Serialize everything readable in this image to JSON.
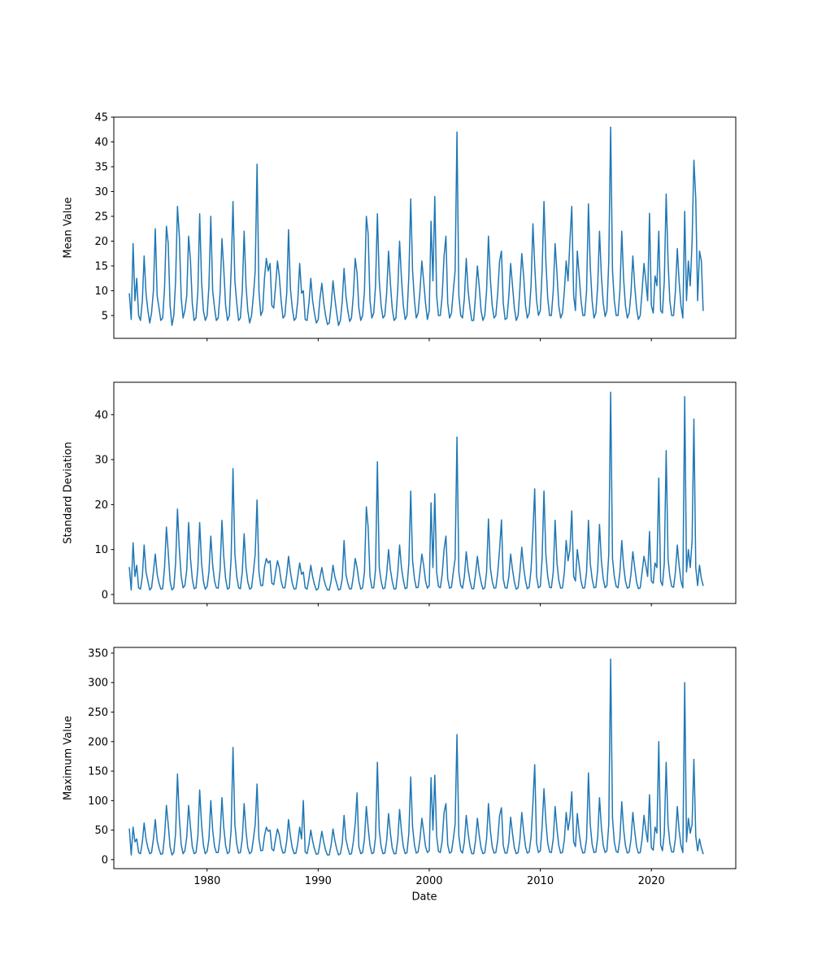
{
  "figure": {
    "background": "#ffffff",
    "text_color": "#000000",
    "spine_color": "#000000"
  },
  "chart_data": [
    {
      "type": "line",
      "title": "",
      "ylabel": "Mean Value",
      "xlabel": "",
      "line_color": "#1f77b4",
      "grid": false,
      "legend": null,
      "xlim": [
        1971.6,
        2027.6
      ],
      "ylim": [
        0.4,
        45.0
      ],
      "xticks": [
        1980,
        1990,
        2000,
        2010,
        2020
      ],
      "xtick_labels": [
        "1980",
        "1990",
        "2000",
        "2010",
        "2020"
      ],
      "show_xtick_labels": false,
      "yticks": [
        5,
        10,
        15,
        20,
        25,
        30,
        35,
        40,
        45
      ],
      "x_start": 1973.0,
      "x_step": 0.1666667,
      "values": [
        9.4,
        4.2,
        19.5,
        8,
        12.5,
        5,
        4,
        8,
        17,
        9.5,
        6,
        3.5,
        5.5,
        10,
        22.5,
        9,
        6.5,
        4,
        4.5,
        10.5,
        23,
        19.5,
        7,
        3,
        5,
        12,
        27,
        21,
        8.5,
        4.5,
        6,
        9,
        21,
        16,
        7.5,
        4,
        4.5,
        10,
        25.5,
        12,
        6,
        4,
        5,
        11,
        25,
        10,
        6.5,
        4,
        4.5,
        9.5,
        20.5,
        14.5,
        7,
        4,
        5,
        14,
        28,
        12,
        7.5,
        4,
        4.5,
        10,
        22,
        11,
        6,
        3.5,
        5,
        9,
        14,
        35.5,
        10,
        5,
        6,
        12.5,
        16.5,
        14,
        15.5,
        7,
        6.5,
        11,
        16,
        13,
        8,
        4.5,
        5,
        9.5,
        22.3,
        10.5,
        6.5,
        4,
        4.5,
        8,
        15.5,
        9.5,
        10,
        4.2,
        4,
        7.5,
        12.5,
        8,
        5.5,
        3.5,
        4.2,
        8.5,
        11.5,
        7.5,
        5,
        3.2,
        3.5,
        7,
        12,
        8.5,
        5.5,
        3,
        4,
        8,
        14.5,
        9,
        6,
        3.8,
        4.5,
        9,
        16.5,
        13.5,
        6.5,
        4,
        5,
        10,
        25,
        21.5,
        8,
        4.5,
        5.5,
        11,
        25.5,
        12,
        7,
        4.5,
        5,
        9.5,
        18,
        11.5,
        6.5,
        4,
        4.5,
        10.5,
        20,
        12.5,
        7,
        4.2,
        5,
        13,
        28.5,
        14,
        8,
        4.5,
        5.5,
        10,
        16,
        12,
        7.5,
        4.2,
        6,
        24,
        12,
        29,
        9,
        5,
        5,
        9,
        17,
        21,
        7.5,
        4.5,
        5.5,
        10,
        14,
        42,
        9,
        5,
        4.5,
        8.5,
        16.5,
        10,
        6.5,
        4,
        4,
        9,
        15,
        11,
        6,
        4,
        5,
        10,
        21,
        12.5,
        7,
        4.5,
        5,
        9.5,
        16,
        18,
        7.5,
        4.2,
        4.5,
        9,
        15.5,
        11,
        6.5,
        4,
        5,
        10.5,
        17.5,
        13,
        7,
        4.5,
        5.5,
        11,
        23.5,
        15,
        8,
        5,
        6,
        14,
        28,
        16,
        8.5,
        5,
        5,
        10,
        19.5,
        13.5,
        7,
        4.5,
        5.5,
        10,
        16,
        12,
        20,
        27,
        9,
        6,
        18,
        13,
        8,
        5,
        5,
        10,
        27.5,
        15,
        8,
        4.5,
        5.5,
        11,
        22,
        13,
        7.5,
        4.8,
        6,
        16,
        43,
        14,
        8,
        5,
        5,
        10,
        22,
        12.5,
        7,
        4.5,
        5.5,
        9.5,
        17,
        11,
        6.5,
        4.2,
        5,
        10,
        15.5,
        12,
        8,
        25.6,
        7,
        5.5,
        13,
        11,
        22,
        6,
        5.5,
        12,
        29.5,
        16,
        8,
        5,
        5,
        10,
        18.5,
        12,
        7,
        4.5,
        26,
        8,
        16,
        11,
        20,
        36.3,
        28.5,
        8,
        18,
        16,
        6
      ]
    },
    {
      "type": "line",
      "title": "",
      "ylabel": "Standard Deviation",
      "xlabel": "",
      "line_color": "#1f77b4",
      "grid": false,
      "legend": null,
      "xlim": [
        1971.6,
        2027.6
      ],
      "ylim": [
        -2.0,
        47.2
      ],
      "xticks": [
        1980,
        1990,
        2000,
        2010,
        2020
      ],
      "xtick_labels": [
        "1980",
        "1990",
        "2000",
        "2010",
        "2020"
      ],
      "show_xtick_labels": false,
      "yticks": [
        0,
        10,
        20,
        30,
        40
      ],
      "x_start": 1973.0,
      "x_step": 0.1666667,
      "values": [
        6,
        1,
        11.5,
        4,
        6.5,
        1.5,
        1.2,
        4,
        11,
        5,
        3,
        1,
        1.5,
        5,
        9,
        4.5,
        2.5,
        1.2,
        1.3,
        6,
        15,
        9.5,
        3,
        1,
        1.5,
        7,
        19,
        10,
        4,
        1.5,
        2,
        5.5,
        16,
        8,
        3.5,
        1.3,
        1.5,
        6,
        16,
        7,
        3,
        1.2,
        1.8,
        5,
        13,
        6.5,
        3,
        1.5,
        1.4,
        5.5,
        16.5,
        8.5,
        3.5,
        1.2,
        1.5,
        8,
        28,
        9,
        4,
        1.5,
        1.3,
        5,
        13.5,
        6,
        2.8,
        1.2,
        1.5,
        5,
        9,
        21,
        5,
        2,
        2,
        6,
        8,
        7,
        7.5,
        2.5,
        2.2,
        5,
        7.5,
        6,
        3,
        1.5,
        1.5,
        4.5,
        8.5,
        5,
        2.5,
        1.2,
        1.3,
        4,
        7,
        4.5,
        5,
        1.5,
        1.2,
        3.5,
        6.5,
        4,
        2.2,
        1,
        1.3,
        3.8,
        6,
        3.5,
        2,
        1,
        1,
        3,
        6.5,
        4,
        2.5,
        1,
        1.2,
        3.5,
        12,
        4.5,
        2.5,
        1.2,
        1.3,
        4,
        8,
        6,
        3,
        1.2,
        1.5,
        5,
        19.5,
        15,
        4,
        1.5,
        1.5,
        5.5,
        29.5,
        6,
        3,
        1.3,
        1.4,
        4.5,
        10,
        5.5,
        3,
        1.2,
        1.3,
        5,
        11,
        6,
        3.2,
        1.3,
        1.5,
        7,
        23,
        7.5,
        3.5,
        1.5,
        1.6,
        5,
        9,
        6.5,
        3,
        1.4,
        2,
        20.4,
        6,
        22.4,
        5,
        1.8,
        1.5,
        4.5,
        10,
        13,
        3.5,
        1.4,
        1.6,
        5,
        8,
        35,
        5,
        2,
        1.4,
        4,
        9.5,
        5.5,
        3,
        1.3,
        1.3,
        4.5,
        8.5,
        5,
        2.8,
        1.2,
        1.5,
        5,
        16.8,
        6,
        3,
        1.4,
        1.5,
        4.8,
        10,
        16.6,
        3.5,
        1.5,
        1.4,
        4,
        9,
        5.5,
        2.8,
        1.2,
        1.5,
        5,
        10.5,
        6,
        3,
        1.3,
        1.6,
        5.5,
        14,
        23.5,
        4,
        1.5,
        1.8,
        8,
        23,
        9,
        4,
        1.6,
        1.5,
        5,
        16.5,
        7,
        3.2,
        1.4,
        1.5,
        5,
        12,
        7.5,
        10,
        18.6,
        4,
        3,
        10,
        6.5,
        3,
        1.4,
        1.5,
        5,
        16.5,
        7,
        3.5,
        1.5,
        1.6,
        5.5,
        15.6,
        7.5,
        3.5,
        1.5,
        2,
        9,
        45,
        8,
        4,
        1.8,
        1.5,
        5,
        12,
        6.5,
        3,
        1.4,
        1.6,
        4.5,
        9.5,
        6,
        2.8,
        1.3,
        1.5,
        5,
        8.5,
        6.5,
        4,
        14,
        3,
        2.5,
        7,
        6,
        25.9,
        3,
        2,
        7,
        32,
        8,
        4,
        1.8,
        1.6,
        5,
        11,
        6.5,
        3,
        1.5,
        44,
        5,
        10,
        6,
        12,
        39,
        6,
        2,
        6.5,
        3.5,
        2
      ]
    },
    {
      "type": "line",
      "title": "",
      "ylabel": "Maximum Value",
      "xlabel": "Date",
      "line_color": "#1f77b4",
      "grid": false,
      "legend": null,
      "xlim": [
        1971.6,
        2027.6
      ],
      "ylim": [
        -15.3,
        359.6
      ],
      "xticks": [
        1980,
        1990,
        2000,
        2010,
        2020
      ],
      "xtick_labels": [
        "1980",
        "1990",
        "2000",
        "2010",
        "2020"
      ],
      "show_xtick_labels": true,
      "yticks": [
        0,
        50,
        100,
        150,
        200,
        250,
        300,
        350
      ],
      "x_start": 1973.0,
      "x_step": 0.1666667,
      "values": [
        52,
        8,
        55,
        30,
        35,
        12,
        10,
        30,
        62,
        35,
        20,
        10,
        12,
        35,
        68,
        32,
        18,
        9,
        10,
        40,
        92,
        60,
        22,
        8,
        12,
        45,
        145,
        70,
        25,
        10,
        15,
        38,
        92,
        55,
        22,
        10,
        12,
        40,
        118,
        60,
        25,
        10,
        14,
        35,
        100,
        50,
        22,
        12,
        12,
        38,
        105,
        55,
        24,
        10,
        13,
        50,
        190,
        60,
        26,
        11,
        12,
        35,
        95,
        48,
        20,
        10,
        13,
        35,
        60,
        128,
        35,
        15,
        16,
        40,
        55,
        48,
        50,
        18,
        15,
        35,
        52,
        42,
        22,
        11,
        12,
        32,
        68,
        40,
        20,
        10,
        11,
        28,
        55,
        35,
        100,
        13,
        10,
        26,
        50,
        32,
        18,
        9,
        10,
        28,
        48,
        30,
        16,
        8,
        8,
        25,
        52,
        33,
        18,
        8,
        10,
        28,
        75,
        35,
        20,
        9,
        10,
        30,
        60,
        113,
        22,
        10,
        12,
        35,
        90,
        55,
        24,
        10,
        12,
        38,
        165,
        50,
        22,
        10,
        11,
        32,
        78,
        45,
        20,
        10,
        10,
        35,
        85,
        48,
        22,
        10,
        12,
        45,
        140,
        55,
        25,
        11,
        13,
        35,
        70,
        48,
        22,
        12,
        15,
        139,
        50,
        143,
        40,
        14,
        12,
        32,
        80,
        95,
        25,
        11,
        13,
        35,
        60,
        212,
        40,
        15,
        11,
        30,
        75,
        45,
        22,
        10,
        10,
        32,
        70,
        42,
        20,
        10,
        12,
        35,
        95,
        50,
        22,
        11,
        12,
        33,
        75,
        88,
        24,
        11,
        11,
        30,
        72,
        44,
        20,
        10,
        12,
        34,
        80,
        48,
        22,
        11,
        13,
        38,
        95,
        161,
        28,
        12,
        15,
        55,
        120,
        65,
        28,
        13,
        12,
        35,
        90,
        52,
        24,
        11,
        12,
        34,
        80,
        50,
        70,
        115,
        30,
        22,
        78,
        45,
        22,
        11,
        12,
        35,
        147,
        60,
        26,
        12,
        13,
        38,
        105,
        55,
        24,
        12,
        15,
        60,
        340,
        70,
        30,
        14,
        12,
        36,
        98,
        52,
        24,
        11,
        13,
        34,
        80,
        48,
        22,
        11,
        12,
        35,
        75,
        50,
        30,
        110,
        20,
        16,
        55,
        45,
        200,
        25,
        15,
        45,
        165,
        60,
        28,
        13,
        13,
        36,
        90,
        50,
        24,
        12,
        300,
        30,
        70,
        45,
        60,
        170,
        40,
        15,
        35,
        20,
        10
      ]
    }
  ]
}
